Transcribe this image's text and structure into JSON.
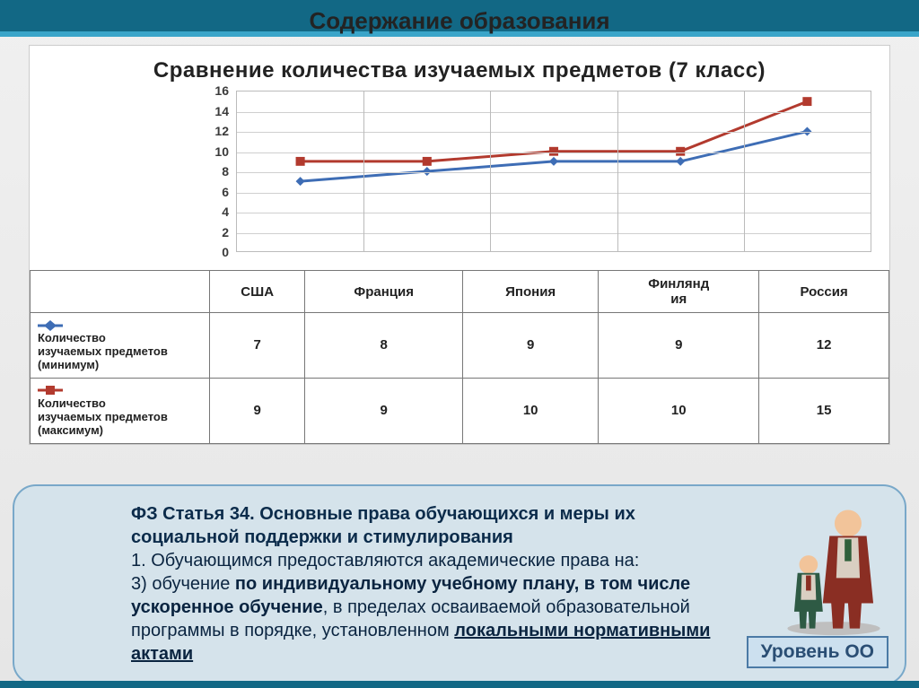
{
  "heading": "Содержание образования",
  "chart": {
    "type": "line",
    "title": "Сравнение количества изучаемых предметов (7 класс)",
    "categories": [
      "США",
      "Франция",
      "Япония",
      "Финляндия",
      "Россия"
    ],
    "category_wrap": [
      "США",
      "Франция",
      "Япония",
      "Финлянд\nия",
      "Россия"
    ],
    "ylim": [
      0,
      16
    ],
    "ytick_step": 2,
    "yticks": [
      0,
      2,
      4,
      6,
      8,
      10,
      12,
      14,
      16
    ],
    "grid_color": "#cfcfcf",
    "border_color": "#bbbbbb",
    "background_color": "#ffffff",
    "series": [
      {
        "key": "min",
        "label": "Количество изучаемых предметов (минимум)",
        "color": "#3e6db5",
        "marker": "diamond",
        "marker_size": 10,
        "line_width": 3,
        "values": [
          7,
          8,
          9,
          9,
          12
        ]
      },
      {
        "key": "max",
        "label": "Количество изучаемых предметов (максимум)",
        "color": "#b23a2e",
        "marker": "square",
        "marker_size": 10,
        "line_width": 3,
        "values": [
          9,
          9,
          10,
          10,
          15
        ]
      }
    ],
    "axis_font_size": 14,
    "title_font_size": 24
  },
  "law": {
    "title": "ФЗ Статья 34. Основные права обучающихся и меры их социальной поддержки  и стимулирования",
    "line1_plain": "1. Обучающимся предоставляются академические права на:",
    "line2_pre": "3) обучение ",
    "line2_bold": "по индивидуальному учебному плану, в том числе ускоренное обучение",
    "line2_post": ", в пределах осваиваемой образовательной программы в порядке, установленном ",
    "line2_underline": "локальными нормативными актами"
  },
  "badge": {
    "label": "Уровень ОО"
  },
  "colors": {
    "teal_dark": "#126885",
    "teal_light": "#3aa5c9",
    "law_bg": "#d5e3eb",
    "law_border": "#79a8c9",
    "badge_bg": "#cce0ef",
    "badge_border": "#4b7aa5"
  }
}
